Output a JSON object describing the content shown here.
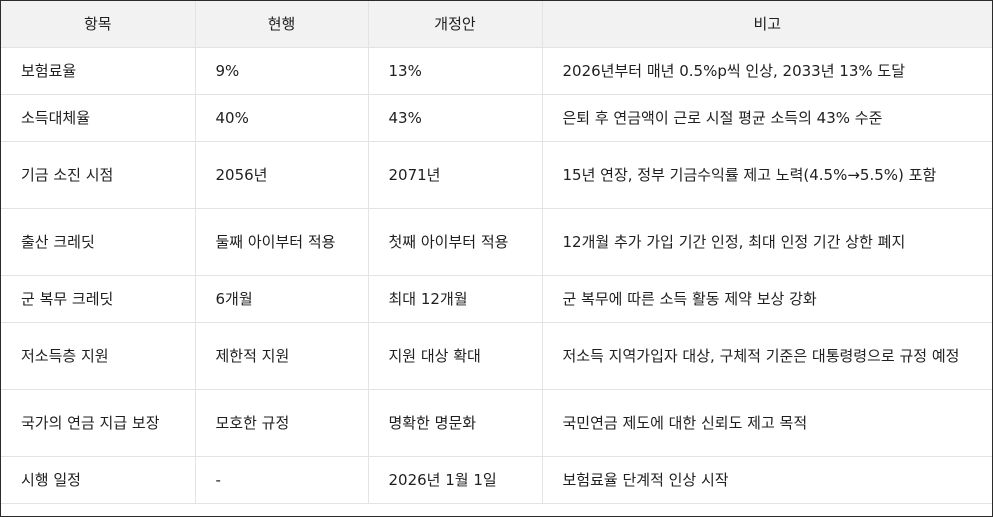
{
  "table": {
    "headers": [
      "항목",
      "현행",
      "개정안",
      "비고"
    ],
    "rows": [
      [
        "보험료율",
        "9%",
        "13%",
        "2026년부터 매년 0.5%p씩 인상, 2033년 13% 도달"
      ],
      [
        "소득대체율",
        "40%",
        "43%",
        "은퇴 후 연금액이 근로 시절 평균 소득의 43% 수준"
      ],
      [
        "기금 소진 시점",
        "2056년",
        "2071년",
        "15년 연장, 정부 기금수익률 제고 노력(4.5%→5.5%) 포함"
      ],
      [
        "출산 크레딧",
        "둘째 아이부터 적용",
        "첫째 아이부터 적용",
        "12개월 추가 가입 기간 인정, 최대 인정 기간 상한 폐지"
      ],
      [
        "군 복무 크레딧",
        "6개월",
        "최대 12개월",
        "군 복무에 따른 소득 활동 제약 보상 강화"
      ],
      [
        "저소득층 지원",
        "제한적 지원",
        "지원 대상 확대",
        "저소득 지역가입자 대상, 구체적 기준은 대통령령으로 규정 예정"
      ],
      [
        "국가의 연금 지급 보장",
        "모호한 규정",
        "명확한 명문화",
        "국민연금 제도에 대한 신뢰도 제고 목적"
      ],
      [
        "시행 일정",
        "-",
        "2026년 1월 1일",
        "보험료율 단계적 인상 시작"
      ]
    ]
  }
}
